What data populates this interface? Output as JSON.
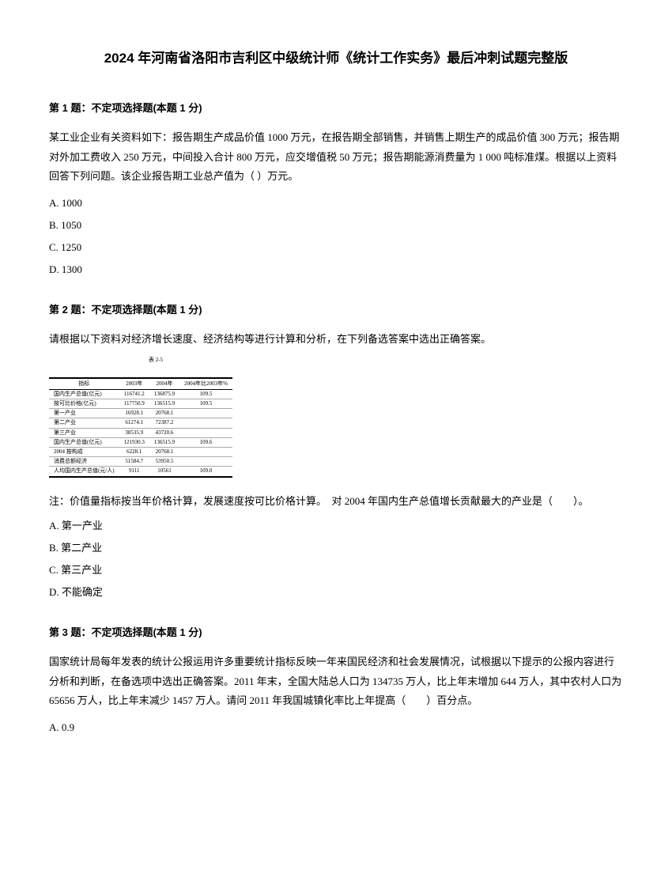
{
  "title": "2024 年河南省洛阳市吉利区中级统计师《统计工作实务》最后冲刺试题完整版",
  "q1": {
    "header": "第 1 题：不定项选择题(本题 1 分)",
    "body": "某工业企业有关资料如下：报告期生产成品价值 1000 万元，在报告期全部销售，并销售上期生产的成品价值 300 万元；报告期对外加工费收入 250 万元，中间投入合计 800 万元，应交增值税 50 万元；报告期能源消费量为 1 000 吨标准煤。根据以上资料回答下列问题。该企业报告期工业总产值为（ ）万元。",
    "optA": "A. 1000",
    "optB": "B. 1050",
    "optC": "C. 1250",
    "optD": "D. 1300"
  },
  "q2": {
    "header": "第 2 题：不定项选择题(本题 1 分)",
    "body": "请根据以下资料对经济增长速度、经济结构等进行计算和分析，在下列备选答案中选出正确答案。",
    "tableCaption": "表 2-5",
    "tableHeaders": [
      "指标",
      "2003年",
      "2004年",
      "2004年比2003年%"
    ],
    "tableRows": [
      [
        "国内生产总值(亿元)",
        "116741.2",
        "136875.9",
        "109.5"
      ],
      [
        "按可比价格(亿元)",
        "117750.9",
        "136515.9",
        "109.5"
      ],
      [
        "第一产业",
        "16928.1",
        "20768.1",
        ""
      ],
      [
        "第二产业",
        "61274.1",
        "72387.2",
        ""
      ],
      [
        "第三产业",
        "38535.9",
        "43720.6",
        ""
      ],
      [
        "国内生产总值(亿元)",
        "121930.3",
        "136515.9",
        "109.6"
      ],
      [
        "2004 按构成",
        "6228.1",
        "20768.1",
        ""
      ],
      [
        "消费总额经济",
        "51584.7",
        "53950.5",
        ""
      ],
      [
        "人均国内生产总值(元/人)",
        "9111",
        "10561",
        "109.0"
      ]
    ],
    "note": "注：价值量指标按当年价格计算，发展速度按可比价格计算。　对 2004 年国内生产总值增长贡献最大的产业是（　　）。",
    "optA": "A. 第一产业",
    "optB": "B. 第二产业",
    "optC": "C. 第三产业",
    "optD": "D. 不能确定"
  },
  "q3": {
    "header": "第 3 题：不定项选择题(本题 1 分)",
    "body": "国家统计局每年发表的统计公报运用许多重要统计指标反映一年来国民经济和社会发展情况，试根据以下提示的公报内容进行分析和判断，在备选项中选出正确答案。2011 年末，全国大陆总人口为 134735 万人，比上年末增加 644 万人，其中农村人口为 65656 万人，比上年末减少 1457 万人。请问 2011 年我国城镇化率比上年提高（　　）百分点。",
    "optA": "A. 0.9"
  }
}
